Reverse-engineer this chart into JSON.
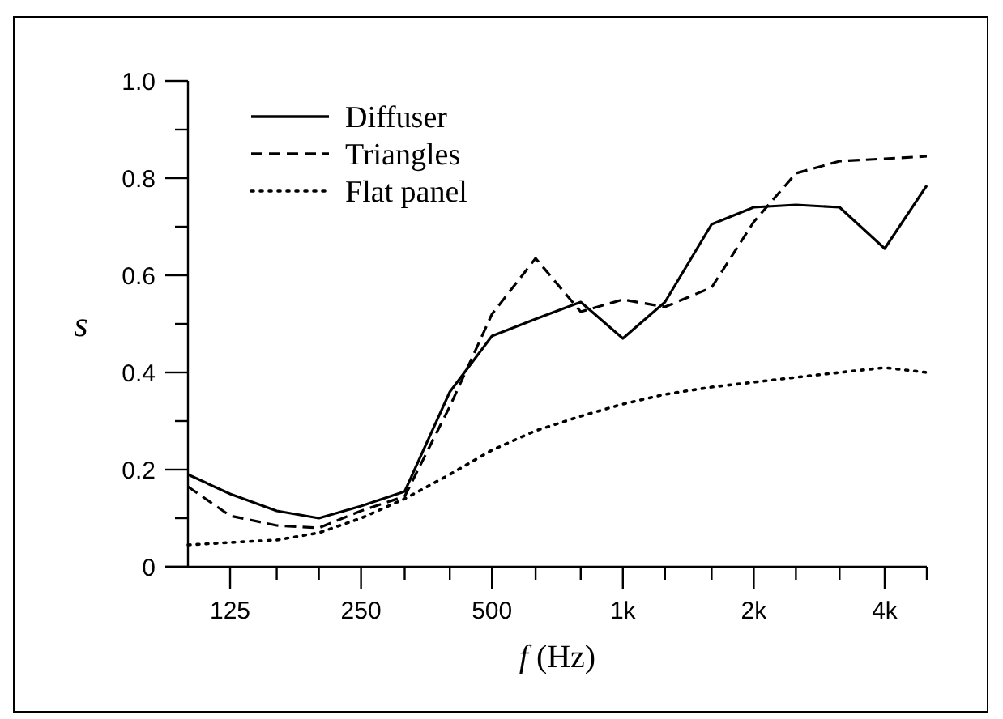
{
  "chart_data": {
    "type": "line",
    "xlabel": "f (Hz)",
    "ylabel": "s",
    "log": "x",
    "x": [
      100,
      125,
      160,
      200,
      250,
      315,
      400,
      500,
      630,
      800,
      1000,
      1250,
      1600,
      2000,
      2500,
      3150,
      4000,
      5000
    ],
    "xlim": [
      100,
      5000
    ],
    "xticks": [
      {
        "value": 125,
        "label": "125"
      },
      {
        "value": 160,
        "label": null
      },
      {
        "value": 200,
        "label": null
      },
      {
        "value": 250,
        "label": "250"
      },
      {
        "value": 315,
        "label": null
      },
      {
        "value": 400,
        "label": null
      },
      {
        "value": 500,
        "label": "500"
      },
      {
        "value": 630,
        "label": null
      },
      {
        "value": 800,
        "label": null
      },
      {
        "value": 1000,
        "label": "1k"
      },
      {
        "value": 1250,
        "label": null
      },
      {
        "value": 1600,
        "label": null
      },
      {
        "value": 2000,
        "label": "2k"
      },
      {
        "value": 2500,
        "label": null
      },
      {
        "value": 3150,
        "label": null
      },
      {
        "value": 4000,
        "label": "4k"
      },
      {
        "value": 5000,
        "label": null
      }
    ],
    "ylim": [
      0,
      1
    ],
    "yticks": [
      0,
      {
        "value": 0.1,
        "label": null
      },
      0.2,
      {
        "value": 0.3,
        "label": null
      },
      0.4,
      {
        "value": 0.5,
        "label": null
      },
      0.6,
      {
        "value": 0.7,
        "label": null
      },
      0.8,
      {
        "value": 0.9,
        "label": null
      },
      {
        "value": 1,
        "label": "1.0"
      }
    ],
    "grid": false,
    "legend": "top left",
    "marker": "none",
    "series": [
      {
        "name": "Diffuser",
        "color": "#000000",
        "line_style": "solid",
        "values": [
          0.19,
          0.15,
          0.115,
          0.1,
          0.125,
          0.155,
          0.36,
          0.475,
          0.51,
          0.545,
          0.47,
          0.545,
          0.705,
          0.74,
          0.745,
          0.74,
          0.655,
          0.785
        ]
      },
      {
        "name": "Triangles",
        "color": "#000000",
        "line_style": "dashed",
        "values": [
          0.165,
          0.105,
          0.085,
          0.08,
          0.115,
          0.145,
          0.33,
          0.52,
          0.635,
          0.525,
          0.55,
          0.535,
          0.575,
          0.71,
          0.81,
          0.835,
          0.84,
          0.845
        ]
      },
      {
        "name": "Flat panel",
        "color": "#000000",
        "line_style": "dotted",
        "values": [
          0.045,
          0.05,
          0.055,
          0.07,
          0.1,
          0.14,
          0.19,
          0.24,
          0.28,
          0.31,
          0.335,
          0.355,
          0.37,
          0.38,
          0.39,
          0.4,
          0.41,
          0.4
        ]
      }
    ]
  }
}
